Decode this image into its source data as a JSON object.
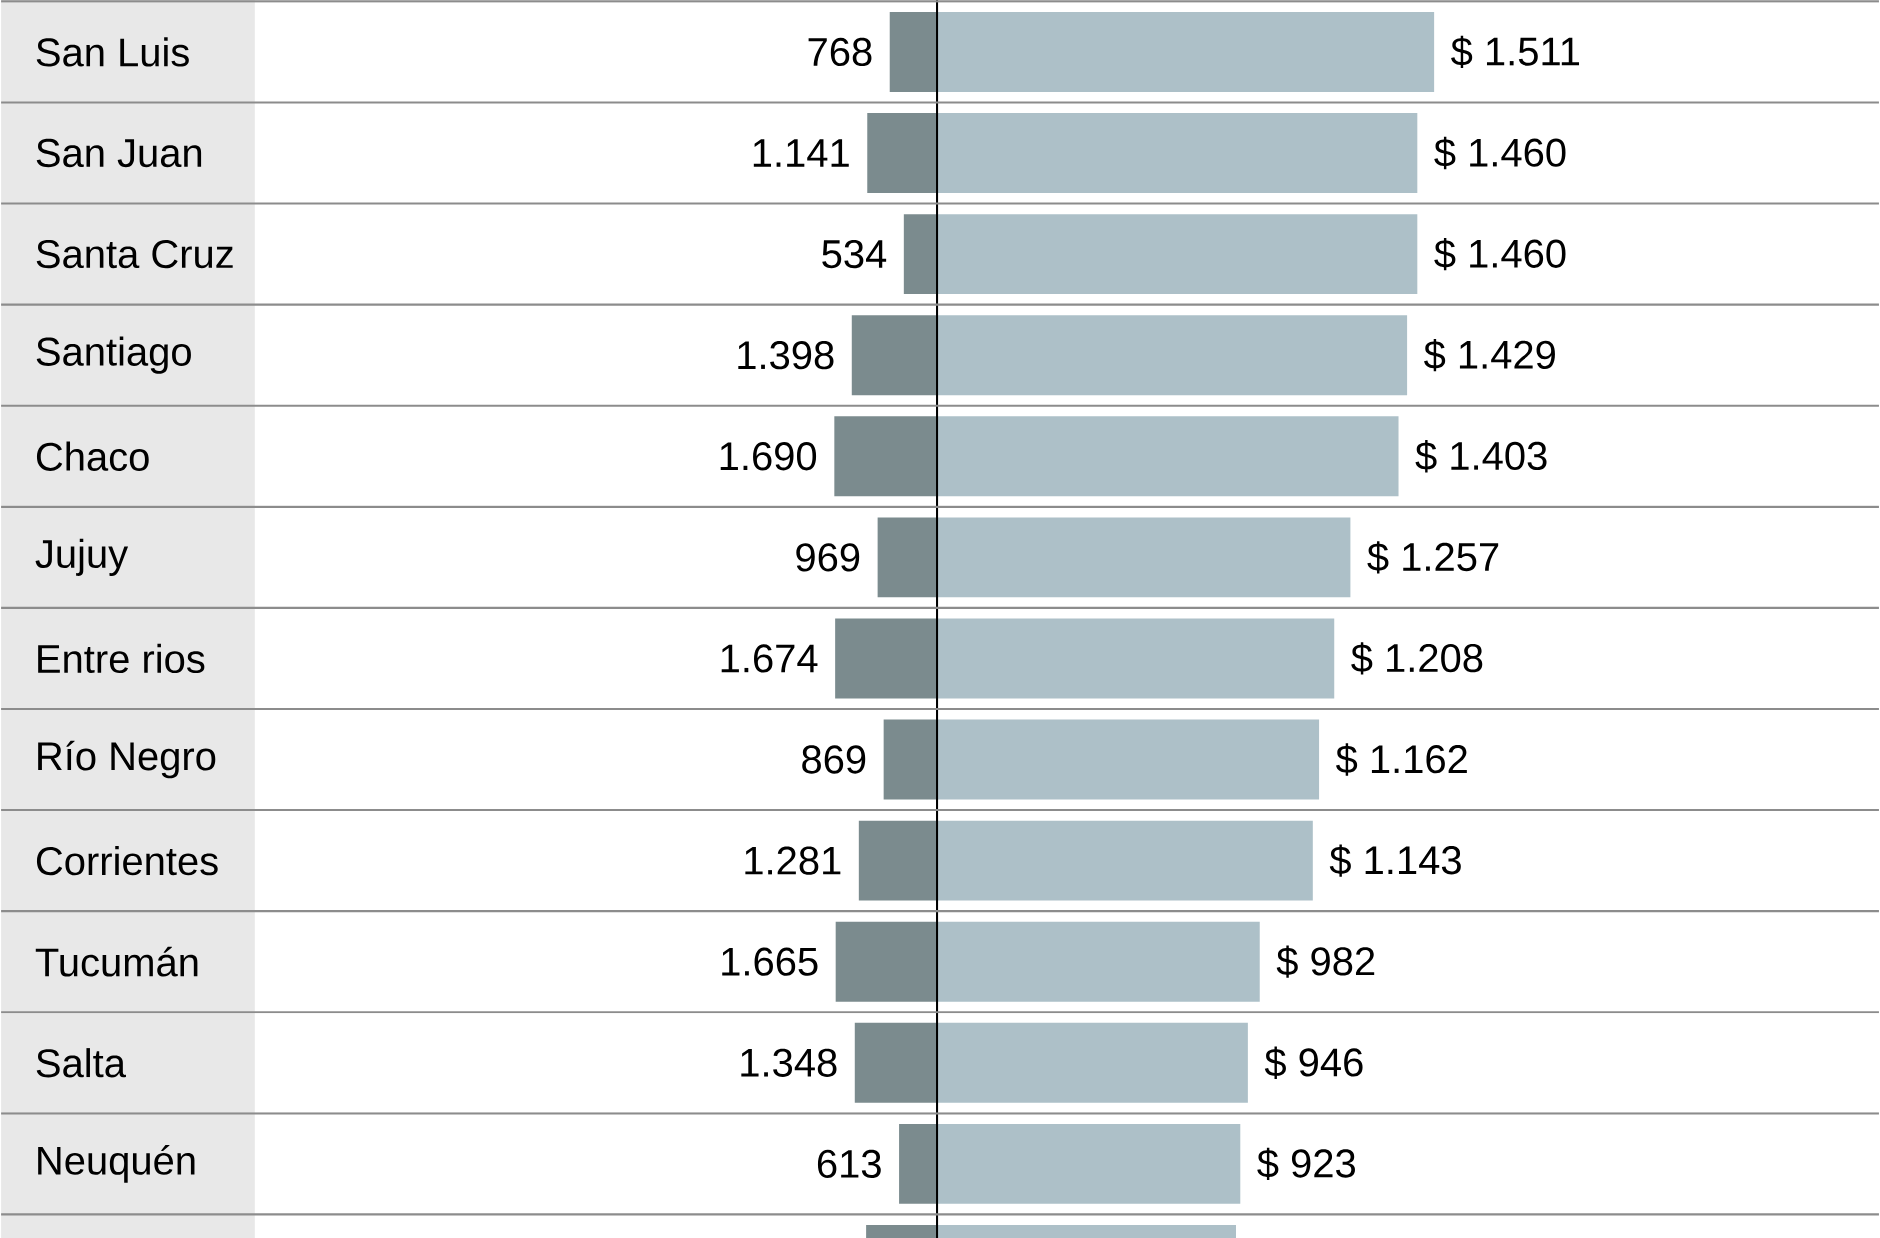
{
  "chart_data": [
    {
      "type": "bar",
      "orientation": "horizontal",
      "tick_labels": "y",
      "categories": [
        "San Luis",
        "San Juan",
        "Santa Cruz",
        "Santiago",
        "Chaco",
        "Jujuy",
        "Entre rios",
        "Río Negro",
        "Corrientes",
        "Tucumán",
        "Salta",
        "Neuquén",
        null
      ],
      "color": "#7b8b8e",
      "values": [
        768,
        1141,
        534,
        1398,
        1690,
        969,
        1674,
        869,
        1281,
        1665,
        1348,
        613,
        1160
      ],
      "value_labels": [
        "768",
        "1.141",
        "534",
        "1.398",
        "1.690",
        "969",
        "1.674",
        "869",
        "1.281",
        "1.665",
        "1.348",
        "613",
        null
      ]
    },
    {
      "type": "bar",
      "orientation": "horizontal",
      "tick_labels": false,
      "categories": [
        null,
        null,
        null,
        null,
        null,
        null,
        null,
        null,
        null,
        null,
        null,
        null,
        null
      ],
      "color": "#adc0c8",
      "values": [
        1511,
        1460,
        1460,
        1429,
        1403,
        1257,
        1208,
        1162,
        1143,
        982,
        946,
        923,
        910
      ],
      "value_labels": [
        "$ 1.511",
        "$ 1.460",
        "$ 1.460",
        "$ 1.429",
        "$ 1.403",
        "$ 1.257",
        "$ 1.208",
        "$ 1.162",
        "$ 1.143",
        "$ 982",
        "$ 946",
        "$ 923",
        null
      ]
    }
  ]
}
